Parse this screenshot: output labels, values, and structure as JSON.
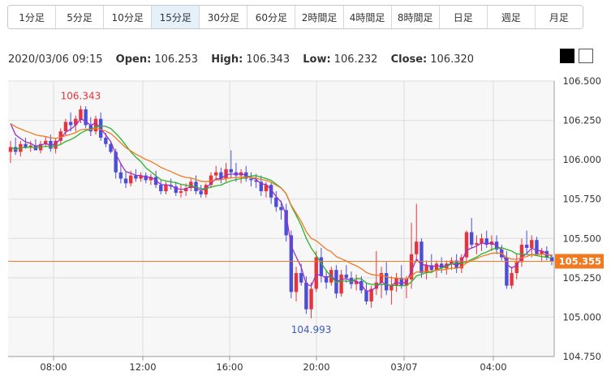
{
  "tabs": [
    {
      "label": "1分足",
      "active": false
    },
    {
      "label": "5分足",
      "active": false
    },
    {
      "label": "10分足",
      "active": false
    },
    {
      "label": "15分足",
      "active": true
    },
    {
      "label": "30分足",
      "active": false
    },
    {
      "label": "60分足",
      "active": false
    },
    {
      "label": "2時間足",
      "active": false
    },
    {
      "label": "4時間足",
      "active": false
    },
    {
      "label": "8時間足",
      "active": false
    },
    {
      "label": "日足",
      "active": false
    },
    {
      "label": "週足",
      "active": false
    },
    {
      "label": "月足",
      "active": false
    }
  ],
  "ohlc": {
    "datetime": "2020/03/06 09:15",
    "open_label": "Open:",
    "open": "106.253",
    "high_label": "High:",
    "high": "106.343",
    "low_label": "Low:",
    "low": "106.232",
    "close_label": "Close:",
    "close": "106.320"
  },
  "colors": {
    "up": "#e8333b",
    "down": "#4b4fd8",
    "ma_short": "#9b30c8",
    "ma_mid": "#2ab42a",
    "ma_long": "#f07a22",
    "current": "#f07a22",
    "grid": "#dddddd",
    "plot_bg": "#f7f7f7"
  },
  "chart_data": {
    "type": "candlestick",
    "ylim": [
      104.75,
      106.5
    ],
    "yticks": [
      "106.500",
      "106.250",
      "106.000",
      "105.750",
      "105.500",
      "105.250",
      "105.000",
      "104.750"
    ],
    "xticks": [
      "08:00",
      "12:00",
      "16:00",
      "20:00",
      "03/07",
      "04:00"
    ],
    "current_price": "105.355",
    "annotations": [
      {
        "text": "106.343",
        "value": 106.343
      },
      {
        "text": "104.993",
        "value": 104.993
      }
    ],
    "candles": [
      [
        106.05,
        106.12,
        105.98,
        106.08
      ],
      [
        106.08,
        106.14,
        106.03,
        106.05
      ],
      [
        106.05,
        106.12,
        106.02,
        106.1
      ],
      [
        106.1,
        106.14,
        106.07,
        106.08
      ],
      [
        106.08,
        106.12,
        106.05,
        106.09
      ],
      [
        106.09,
        106.13,
        106.06,
        106.06
      ],
      [
        106.06,
        106.12,
        106.04,
        106.1
      ],
      [
        106.1,
        106.15,
        106.08,
        106.12
      ],
      [
        106.12,
        106.16,
        106.05,
        106.07
      ],
      [
        106.07,
        106.14,
        106.04,
        106.12
      ],
      [
        106.12,
        106.2,
        106.1,
        106.18
      ],
      [
        106.18,
        106.26,
        106.15,
        106.24
      ],
      [
        106.24,
        106.3,
        106.18,
        106.22
      ],
      [
        106.22,
        106.28,
        106.18,
        106.26
      ],
      [
        106.253,
        106.343,
        106.232,
        106.32
      ],
      [
        106.32,
        106.34,
        106.2,
        106.22
      ],
      [
        106.22,
        106.27,
        106.15,
        106.18
      ],
      [
        106.18,
        106.28,
        106.16,
        106.26
      ],
      [
        106.26,
        106.3,
        106.12,
        106.14
      ],
      [
        106.14,
        106.17,
        106.08,
        106.1
      ],
      [
        106.1,
        106.12,
        106.04,
        106.05
      ],
      [
        106.05,
        106.07,
        105.88,
        105.92
      ],
      [
        105.92,
        105.98,
        105.85,
        105.88
      ],
      [
        105.88,
        105.92,
        105.82,
        105.85
      ],
      [
        105.85,
        105.93,
        105.83,
        105.9
      ],
      [
        105.9,
        105.94,
        105.86,
        105.88
      ],
      [
        105.88,
        105.92,
        105.86,
        105.9
      ],
      [
        105.9,
        105.92,
        105.85,
        105.87
      ],
      [
        105.87,
        105.91,
        105.84,
        105.89
      ],
      [
        105.89,
        105.93,
        105.82,
        105.84
      ],
      [
        105.84,
        105.87,
        105.78,
        105.8
      ],
      [
        105.8,
        105.86,
        105.78,
        105.84
      ],
      [
        105.84,
        105.88,
        105.81,
        105.83
      ],
      [
        105.83,
        105.86,
        105.77,
        105.79
      ],
      [
        105.79,
        105.84,
        105.76,
        105.8
      ],
      [
        105.8,
        105.85,
        105.77,
        105.82
      ],
      [
        105.82,
        105.88,
        105.8,
        105.86
      ],
      [
        105.86,
        105.9,
        105.78,
        105.8
      ],
      [
        105.8,
        105.84,
        105.76,
        105.78
      ],
      [
        105.78,
        105.85,
        105.76,
        105.84
      ],
      [
        105.84,
        105.92,
        105.82,
        105.9
      ],
      [
        105.9,
        105.96,
        105.87,
        105.92
      ],
      [
        105.92,
        105.95,
        105.85,
        105.88
      ],
      [
        105.88,
        105.98,
        105.86,
        105.94
      ],
      [
        105.94,
        106.06,
        105.88,
        105.92
      ],
      [
        105.92,
        105.98,
        105.86,
        105.9
      ],
      [
        105.9,
        105.94,
        105.85,
        105.92
      ],
      [
        105.92,
        105.96,
        105.86,
        105.88
      ],
      [
        105.88,
        105.92,
        105.83,
        105.87
      ],
      [
        105.87,
        105.91,
        105.82,
        105.86
      ],
      [
        105.86,
        105.9,
        105.77,
        105.8
      ],
      [
        105.8,
        105.86,
        105.76,
        105.84
      ],
      [
        105.84,
        105.86,
        105.72,
        105.76
      ],
      [
        105.76,
        105.8,
        105.67,
        105.7
      ],
      [
        105.7,
        105.74,
        105.62,
        105.68
      ],
      [
        105.68,
        105.72,
        105.48,
        105.52
      ],
      [
        105.52,
        105.55,
        105.12,
        105.16
      ],
      [
        105.16,
        105.32,
        105.1,
        105.28
      ],
      [
        105.28,
        105.34,
        105.2,
        105.22
      ],
      [
        105.22,
        105.26,
        105.02,
        105.05
      ],
      [
        105.05,
        105.22,
        104.993,
        105.18
      ],
      [
        105.18,
        105.42,
        105.16,
        105.38
      ],
      [
        105.38,
        105.44,
        105.22,
        105.26
      ],
      [
        105.26,
        105.3,
        105.18,
        105.22
      ],
      [
        105.22,
        105.32,
        105.2,
        105.3
      ],
      [
        105.3,
        105.33,
        105.12,
        105.15
      ],
      [
        105.15,
        105.3,
        105.13,
        105.27
      ],
      [
        105.27,
        105.33,
        105.22,
        105.25
      ],
      [
        105.25,
        105.29,
        105.18,
        105.21
      ],
      [
        105.21,
        105.27,
        105.17,
        105.23
      ],
      [
        105.23,
        105.26,
        105.15,
        105.17
      ],
      [
        105.17,
        105.22,
        105.08,
        105.1
      ],
      [
        105.1,
        105.2,
        105.06,
        105.18
      ],
      [
        105.18,
        105.42,
        105.14,
        105.22
      ],
      [
        105.22,
        105.32,
        105.12,
        105.28
      ],
      [
        105.28,
        105.35,
        105.14,
        105.17
      ],
      [
        105.17,
        105.26,
        105.08,
        105.2
      ],
      [
        105.2,
        105.28,
        105.16,
        105.25
      ],
      [
        105.25,
        105.33,
        105.18,
        105.2
      ],
      [
        105.2,
        105.26,
        105.12,
        105.24
      ],
      [
        105.24,
        105.6,
        105.18,
        105.4
      ],
      [
        105.4,
        105.72,
        105.35,
        105.48
      ],
      [
        105.48,
        105.5,
        105.25,
        105.28
      ],
      [
        105.28,
        105.36,
        105.24,
        105.33
      ],
      [
        105.33,
        105.4,
        105.28,
        105.3
      ],
      [
        105.3,
        105.36,
        105.25,
        105.34
      ],
      [
        105.34,
        105.38,
        105.28,
        105.31
      ],
      [
        105.31,
        105.36,
        105.27,
        105.34
      ],
      [
        105.34,
        105.38,
        105.3,
        105.36
      ],
      [
        105.36,
        105.4,
        105.28,
        105.31
      ],
      [
        105.31,
        105.4,
        105.28,
        105.38
      ],
      [
        105.38,
        105.55,
        105.35,
        105.54
      ],
      [
        105.54,
        105.63,
        105.44,
        105.46
      ],
      [
        105.46,
        105.52,
        105.4,
        105.47
      ],
      [
        105.47,
        105.53,
        105.42,
        105.5
      ],
      [
        105.5,
        105.55,
        105.44,
        105.46
      ],
      [
        105.46,
        105.52,
        105.42,
        105.48
      ],
      [
        105.48,
        105.52,
        105.4,
        105.43
      ],
      [
        105.43,
        105.46,
        105.36,
        105.38
      ],
      [
        105.38,
        105.42,
        105.18,
        105.2
      ],
      [
        105.2,
        105.32,
        105.18,
        105.28
      ],
      [
        105.28,
        105.4,
        105.24,
        105.35
      ],
      [
        105.35,
        105.5,
        105.32,
        105.46
      ],
      [
        105.46,
        105.55,
        105.4,
        105.44
      ],
      [
        105.44,
        105.52,
        105.38,
        105.49
      ],
      [
        105.49,
        105.51,
        105.39,
        105.4
      ],
      [
        105.4,
        105.44,
        105.35,
        105.42
      ],
      [
        105.42,
        105.45,
        105.36,
        105.38
      ],
      [
        105.38,
        105.4,
        105.33,
        105.355
      ]
    ]
  }
}
